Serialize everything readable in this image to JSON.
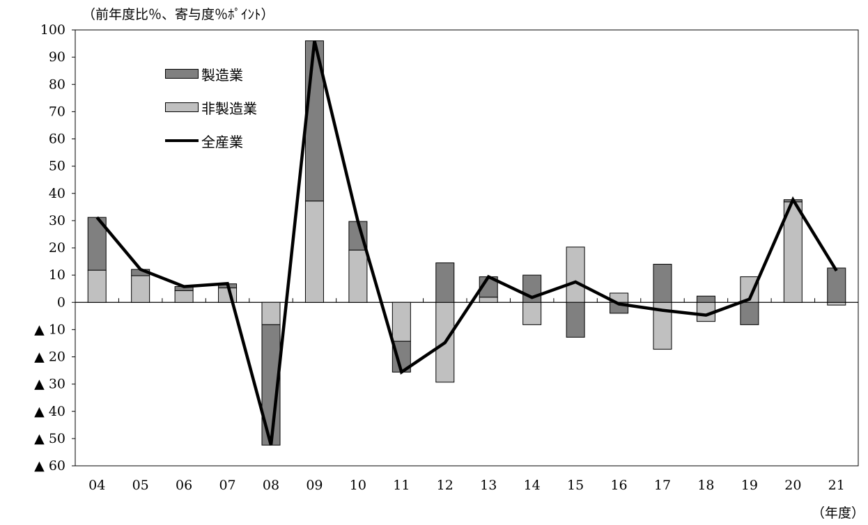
{
  "chart_data": {
    "type": "bar",
    "unit_label": "（前年度比％、寄与度％ﾎﾟｲﾝﾄ）",
    "x_unit_label": "（年度）",
    "categories": [
      "04",
      "05",
      "06",
      "07",
      "08",
      "09",
      "10",
      "11",
      "12",
      "13",
      "14",
      "15",
      "16",
      "17",
      "18",
      "19",
      "20",
      "21"
    ],
    "ylim": [
      -60,
      100
    ],
    "y_ticks": [
      100,
      90,
      80,
      70,
      60,
      50,
      40,
      30,
      20,
      10,
      0,
      -10,
      -20,
      -30,
      -40,
      -50,
      -60
    ],
    "y_tick_labels": [
      "100",
      "90",
      "80",
      "70",
      "60",
      "50",
      "40",
      "30",
      "20",
      "10",
      "0",
      "▲ 10",
      "▲ 20",
      "▲ 30",
      "▲ 40",
      "▲ 50",
      "▲ 60"
    ],
    "stacked": true,
    "grid": false,
    "legend_position": "top-left",
    "series": [
      {
        "name": "製造業",
        "type": "bar",
        "color": "#808080",
        "values": [
          19.4,
          2.3,
          1.5,
          1.5,
          -44.2,
          58.8,
          10.5,
          -11.3,
          14.5,
          7.5,
          10.0,
          -12.8,
          -4.0,
          14.0,
          2.3,
          -8.2,
          0.8,
          12.6
        ]
      },
      {
        "name": "非製造業",
        "type": "bar",
        "color": "#c0c0c0",
        "values": [
          11.8,
          9.8,
          4.3,
          5.3,
          -8.2,
          37.2,
          19.2,
          -14.3,
          -29.3,
          1.9,
          -8.2,
          20.3,
          3.4,
          -17.2,
          -7.0,
          9.4,
          36.9,
          -1.0
        ]
      },
      {
        "name": "全産業",
        "type": "line",
        "color": "#000000",
        "values": [
          31.2,
          12.1,
          5.8,
          6.9,
          -52.4,
          96.0,
          29.6,
          -25.6,
          -14.8,
          9.4,
          1.8,
          7.5,
          -0.6,
          -2.9,
          -4.7,
          1.2,
          37.7,
          11.6
        ]
      }
    ]
  }
}
